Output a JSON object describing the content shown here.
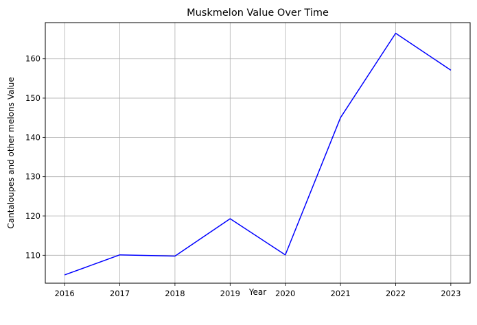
{
  "chart_data": {
    "type": "line",
    "title": "Muskmelon Value Over Time",
    "xlabel": "Year",
    "ylabel": "Cantaloupes and other melons Value",
    "x": [
      2016,
      2017,
      2018,
      2019,
      2020,
      2021,
      2022,
      2023
    ],
    "series": [
      {
        "values": [
          105.0,
          110.1,
          109.8,
          119.3,
          110.1,
          145.0,
          166.5,
          157.1
        ],
        "color": "#0000ff"
      }
    ],
    "xlim": [
      2015.65,
      2023.35
    ],
    "ylim": [
      102.9,
      169.2
    ],
    "yticks": [
      110,
      120,
      130,
      140,
      150,
      160
    ],
    "grid": true,
    "legend": "none"
  }
}
